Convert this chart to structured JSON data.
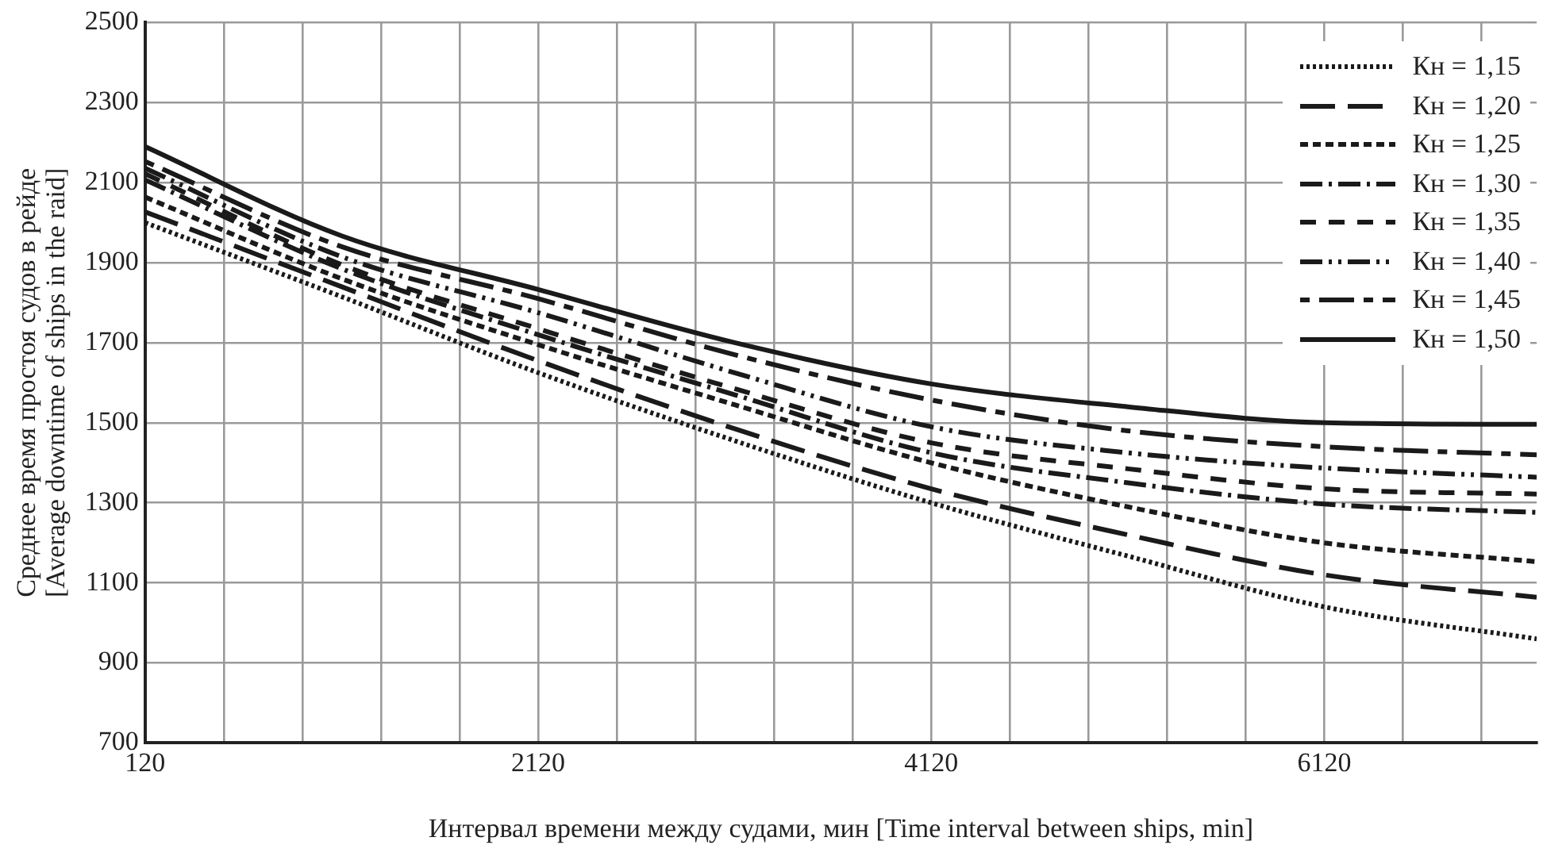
{
  "chart_data": {
    "type": "line",
    "xlabel": "Интервал времени между судами, мин [Time interval between ships, min]",
    "ylabel": "Среднее время простоя судов в рейде\n[Average downtime of ships in the raid]",
    "x": [
      120,
      1120,
      2120,
      3120,
      4120,
      5120,
      6120,
      7200
    ],
    "series": [
      {
        "name": "Кн = 1,15",
        "color": "#1a1a1a",
        "line_style": "dotted",
        "values": [
          2000,
          1815,
          1625,
          1455,
          1300,
          1167,
          1040,
          960
        ]
      },
      {
        "name": "Кн = 1,20",
        "color": "#1a1a1a",
        "line_style": "dashed",
        "values": [
          2027,
          1840,
          1655,
          1485,
          1335,
          1220,
          1120,
          1064
        ]
      },
      {
        "name": "Кн = 1,25",
        "color": "#1a1a1a",
        "line_style": "dashed",
        "values": [
          2064,
          1860,
          1695,
          1545,
          1400,
          1290,
          1200,
          1153
        ]
      },
      {
        "name": "Кн = 1,30",
        "color": "#1a1a1a",
        "line_style": "dashed",
        "values": [
          2107,
          1885,
          1720,
          1570,
          1425,
          1350,
          1297,
          1276
        ]
      },
      {
        "name": "Кн = 1,35",
        "color": "#1a1a1a",
        "line_style": "dashed",
        "values": [
          2122,
          1895,
          1735,
          1585,
          1450,
          1385,
          1335,
          1322
        ]
      },
      {
        "name": "Кн = 1,40",
        "color": "#1a1a1a",
        "line_style": "dashed",
        "values": [
          2136,
          1915,
          1775,
          1625,
          1490,
          1425,
          1387,
          1364
        ]
      },
      {
        "name": "Кн = 1,45",
        "color": "#1a1a1a",
        "line_style": "dashed",
        "values": [
          2153,
          1940,
          1810,
          1670,
          1557,
          1480,
          1440,
          1420
        ]
      },
      {
        "name": "Кн = 1,50",
        "color": "#1a1a1a",
        "line_style": "solid",
        "values": [
          2190,
          1967,
          1833,
          1700,
          1597,
          1540,
          1500,
          1496
        ]
      }
    ],
    "xlim": [
      120,
      7200
    ],
    "xticks": [
      120,
      {
        "value": 520,
        "label": null
      },
      {
        "value": 920,
        "label": null
      },
      {
        "value": 1320,
        "label": null
      },
      {
        "value": 1720,
        "label": null
      },
      2120,
      {
        "value": 2520,
        "label": null
      },
      {
        "value": 2920,
        "label": null
      },
      {
        "value": 3320,
        "label": null
      },
      {
        "value": 3720,
        "label": null
      },
      4120,
      {
        "value": 4520,
        "label": null
      },
      {
        "value": 4920,
        "label": null
      },
      {
        "value": 5320,
        "label": null
      },
      {
        "value": 5720,
        "label": null
      },
      6120,
      {
        "value": 6520,
        "label": null
      },
      {
        "value": 6920,
        "label": null
      }
    ],
    "ylim": [
      700,
      2500
    ],
    "yticks": [
      700,
      900,
      1100,
      1300,
      1500,
      1700,
      1900,
      2100,
      2300,
      2500
    ],
    "grid": true,
    "legend": "top right",
    "marker": "none"
  }
}
